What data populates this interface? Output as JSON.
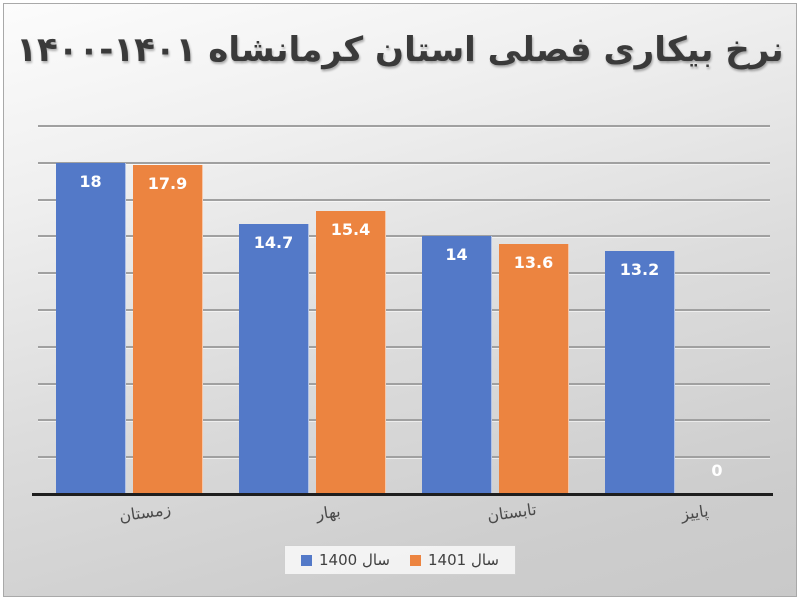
{
  "title": {
    "text": "نرخ بیکاری فصلی استان کرمانشاه",
    "years": "۱۴۰۰-۱۴۰۱"
  },
  "chart_data": {
    "type": "bar",
    "title": "نرخ بیکاری فصلی استان کرمانشاه ۱۴۰۰-۱۴۰۱",
    "categories": [
      "زمستان",
      "بهار",
      "تابستان",
      "پاییز"
    ],
    "series": [
      {
        "name": "سال 1400",
        "color": "#5379C8",
        "values": [
          18,
          14.7,
          14,
          13.2
        ]
      },
      {
        "name": "سال 1401",
        "color": "#EC8440",
        "values": [
          17.9,
          15.4,
          13.6,
          0
        ]
      }
    ],
    "data_labels": [
      [
        "18",
        "14.7",
        "14",
        "13.2"
      ],
      [
        "17.9",
        "15.4",
        "13.6",
        "0"
      ]
    ],
    "xlabel": "",
    "ylabel": "",
    "ylim": [
      0,
      20
    ],
    "grid_step": 2,
    "grid": "on",
    "legend_position": "bottom",
    "axis_line_color": "#1e1e1e",
    "gridline_color": "#a0a0a0",
    "label_color": "#ffffff"
  }
}
